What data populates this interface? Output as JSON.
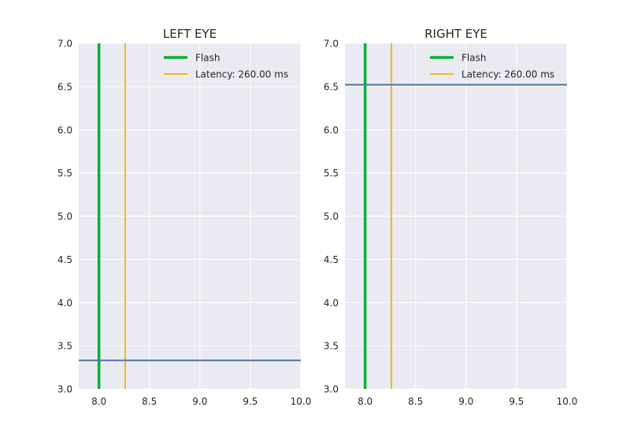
{
  "chart_data": [
    {
      "type": "line",
      "title": "LEFT EYE",
      "xlim": [
        7.8,
        10.0
      ],
      "ylim": [
        3.0,
        7.0
      ],
      "xticks": [
        8.0,
        8.5,
        9.0,
        9.5,
        10.0
      ],
      "xtick_labels": [
        "8.0",
        "8.5",
        "9.0",
        "9.5",
        "10.0"
      ],
      "yticks": [
        3.0,
        3.5,
        4.0,
        4.5,
        5.0,
        5.5,
        6.0,
        6.5,
        7.0
      ],
      "ytick_labels": [
        "3.0",
        "3.5",
        "4.0",
        "4.5",
        "5.0",
        "5.5",
        "6.0",
        "6.5",
        "7.0"
      ],
      "grid": true,
      "legend_position": "top-right",
      "series": [
        {
          "name": "Flash",
          "orientation": "vertical",
          "x": 8.0,
          "color": "#00b233",
          "width": 3.5
        },
        {
          "name": "Latency: 260.00 ms",
          "orientation": "vertical",
          "x": 8.26,
          "color": "#f2b817",
          "width": 2
        },
        {
          "orientation": "horizontal",
          "y": 3.33,
          "color": "#4c72b0",
          "width": 2
        }
      ]
    },
    {
      "type": "line",
      "title": "RIGHT EYE",
      "xlim": [
        7.8,
        10.0
      ],
      "ylim": [
        3.0,
        7.0
      ],
      "xticks": [
        8.0,
        8.5,
        9.0,
        9.5,
        10.0
      ],
      "xtick_labels": [
        "8.0",
        "8.5",
        "9.0",
        "9.5",
        "10.0"
      ],
      "yticks": [
        3.0,
        3.5,
        4.0,
        4.5,
        5.0,
        5.5,
        6.0,
        6.5,
        7.0
      ],
      "ytick_labels": [
        "3.0",
        "3.5",
        "4.0",
        "4.5",
        "5.0",
        "5.5",
        "6.0",
        "6.5",
        "7.0"
      ],
      "grid": true,
      "legend_position": "top-right",
      "series": [
        {
          "name": "Flash",
          "orientation": "vertical",
          "x": 8.0,
          "color": "#00b233",
          "width": 3.5
        },
        {
          "name": "Latency: 260.00 ms",
          "orientation": "vertical",
          "x": 8.26,
          "color": "#f2b817",
          "width": 2
        },
        {
          "orientation": "horizontal",
          "y": 6.52,
          "color": "#4c72b0",
          "width": 2
        }
      ]
    }
  ]
}
